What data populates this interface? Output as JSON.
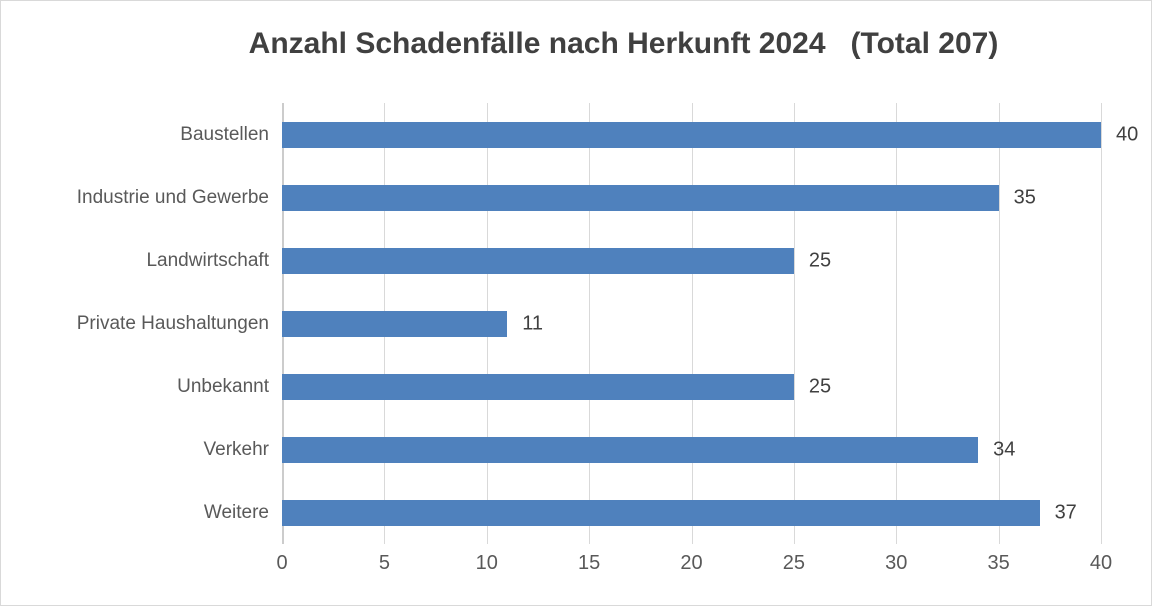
{
  "chart_data": {
    "type": "bar",
    "orientation": "horizontal",
    "title": "Anzahl Schadenfälle nach Herkunft 2024   (Total 207)",
    "total": 207,
    "categories": [
      "Baustellen",
      "Industrie und Gewerbe",
      "Landwirtschaft",
      "Private Haushaltungen",
      "Unbekannt",
      "Verkehr",
      "Weitere"
    ],
    "values": [
      40,
      35,
      25,
      11,
      25,
      34,
      37
    ],
    "data_labels": [
      "40",
      "35",
      "25",
      "11",
      "25",
      "34",
      "37"
    ],
    "xlim": [
      0,
      40
    ],
    "x_ticks": [
      0,
      5,
      10,
      15,
      20,
      25,
      30,
      35,
      40
    ],
    "grid": "vertical-gridlines-on",
    "legend": "none",
    "colors": {
      "bar": "#4F81BD",
      "gridline": "#d9d9d9",
      "axis_line": "#cccccc",
      "title_text": "#404040",
      "category_text": "#595959",
      "value_text": "#404040",
      "tick_text": "#595959",
      "frame_border": "#d9d9d9",
      "background": "#ffffff"
    }
  }
}
